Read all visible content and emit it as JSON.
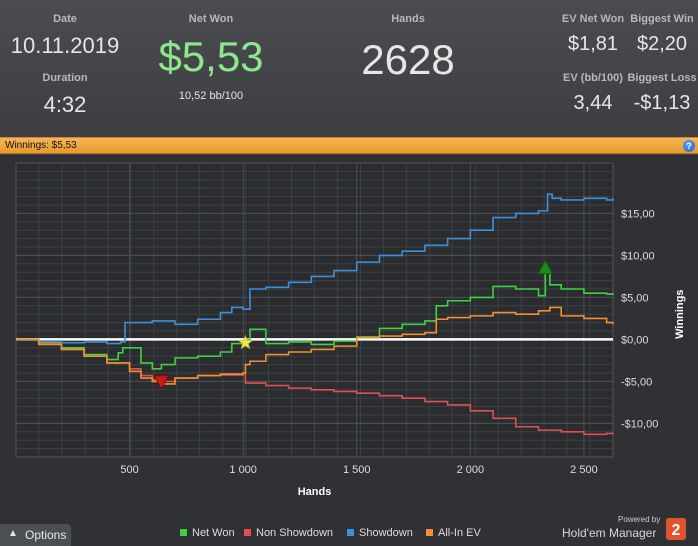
{
  "stats": {
    "date_label": "Date",
    "date_value": "10.11.2019",
    "duration_label": "Duration",
    "duration_value": "4:32",
    "netwon_label": "Net Won",
    "netwon_value": "$5,53",
    "bb100_value": "10,52 bb/100",
    "hands_label": "Hands",
    "hands_value": "2628",
    "ev_net_label": "EV Net Won",
    "ev_net_value": "$1,81",
    "biggest_win_label": "Biggest Win",
    "biggest_win_value": "$2,20",
    "ev_bb_label": "EV (bb/100)",
    "ev_bb_value": "3,44",
    "biggest_loss_label": "Biggest Loss",
    "biggest_loss_value": "-$1,13"
  },
  "winbar": {
    "label": "Winnings: $5,53",
    "help": "?"
  },
  "chart_data": {
    "type": "line",
    "xlabel": "Hands",
    "ylabel": "Winnings",
    "xlim": [
      0,
      2628
    ],
    "ylim": [
      -14,
      21
    ],
    "x_ticks": [
      500,
      1000,
      1500,
      2000,
      2500
    ],
    "x_tick_labels": [
      "500",
      "1 000",
      "1 500",
      "2 000",
      "2 500"
    ],
    "y_ticks": [
      15,
      10,
      5,
      0,
      -5,
      -10
    ],
    "y_tick_labels": [
      "$15,00",
      "$10,00",
      "$5,00",
      "$0,00",
      "-$5,00",
      "-$10,00"
    ],
    "grid": true,
    "series": [
      {
        "name": "Net Won",
        "color": "#3fd23f",
        "x": [
          0,
          100,
          200,
          300,
          400,
          450,
          470,
          550,
          600,
          640,
          700,
          800,
          900,
          950,
          1000,
          1010,
          1030,
          1100,
          1200,
          1300,
          1400,
          1500,
          1600,
          1700,
          1800,
          1850,
          1900,
          2000,
          2100,
          2200,
          2300,
          2330,
          2350,
          2400,
          2500,
          2600,
          2628
        ],
        "y": [
          0,
          -0.4,
          -1,
          -1.8,
          -2.4,
          -1.6,
          -1.0,
          -2.8,
          -3.5,
          -3.0,
          -2.2,
          -2.0,
          -1.5,
          -0.5,
          -0.4,
          0,
          1.2,
          -0.5,
          -0.3,
          -0.6,
          -0.2,
          0.3,
          1.3,
          1.8,
          2.2,
          4.0,
          4.6,
          5.0,
          6.3,
          6.0,
          5.2,
          8.3,
          6.5,
          6.0,
          5.5,
          5.4,
          5.53
        ]
      },
      {
        "name": "Non Showdown",
        "color": "#e05050",
        "x": [
          0,
          100,
          200,
          300,
          400,
          500,
          550,
          600,
          650,
          700,
          800,
          900,
          1000,
          1010,
          1100,
          1200,
          1300,
          1400,
          1500,
          1600,
          1700,
          1800,
          1900,
          2000,
          2100,
          2200,
          2300,
          2400,
          2500,
          2600,
          2628
        ],
        "y": [
          0,
          -0.5,
          -1.2,
          -2.0,
          -2.8,
          -3.5,
          -4.3,
          -4.8,
          -5.0,
          -4.6,
          -4.3,
          -4.1,
          -4.0,
          -5.2,
          -5.5,
          -5.8,
          -6.0,
          -6.2,
          -6.4,
          -6.7,
          -7.0,
          -7.4,
          -7.8,
          -8.5,
          -9.4,
          -10.4,
          -10.8,
          -11.0,
          -11.3,
          -11.2,
          -11.3
        ]
      },
      {
        "name": "Showdown",
        "color": "#3d8fdb",
        "x": [
          0,
          100,
          200,
          300,
          400,
          460,
          480,
          600,
          700,
          800,
          900,
          950,
          1000,
          1030,
          1100,
          1200,
          1300,
          1400,
          1500,
          1600,
          1700,
          1800,
          1900,
          2000,
          2100,
          2200,
          2300,
          2340,
          2360,
          2400,
          2500,
          2600,
          2628
        ],
        "y": [
          0,
          -0.2,
          -0.4,
          -0.3,
          -0.5,
          -0.3,
          2.0,
          2.2,
          1.8,
          2.4,
          3.2,
          3.8,
          3.6,
          6.0,
          6.2,
          6.8,
          7.5,
          8.2,
          9.2,
          10.0,
          10.5,
          11.2,
          12.0,
          13.0,
          14.5,
          15.0,
          15.3,
          17.3,
          16.8,
          16.6,
          16.8,
          16.6,
          16.8
        ]
      },
      {
        "name": "All-In EV",
        "color": "#f0902e",
        "x": [
          0,
          100,
          200,
          300,
          400,
          500,
          550,
          600,
          650,
          700,
          800,
          900,
          1000,
          1010,
          1030,
          1100,
          1200,
          1300,
          1400,
          1500,
          1600,
          1700,
          1800,
          1850,
          1900,
          2000,
          2100,
          2200,
          2300,
          2350,
          2400,
          2500,
          2600,
          2628
        ],
        "y": [
          0,
          -0.6,
          -1.2,
          -2.0,
          -2.8,
          -3.8,
          -4.6,
          -5.0,
          -5.3,
          -4.6,
          -4.3,
          -4.2,
          -4.0,
          -3.0,
          -2.6,
          -1.8,
          -1.5,
          -1.2,
          -0.8,
          0.2,
          0.4,
          0.6,
          0.8,
          2.4,
          2.6,
          2.8,
          3.2,
          3.0,
          3.4,
          3.8,
          2.8,
          2.5,
          2.0,
          1.81
        ]
      }
    ],
    "markers": [
      {
        "name": "biggest-win-marker",
        "x": 2330,
        "y": 8.3,
        "shape": "up-triangle",
        "color": "#1e8a1e"
      },
      {
        "name": "biggest-loss-marker",
        "x": 640,
        "y": -4.8,
        "shape": "down-triangle",
        "color": "#cc1a1a"
      },
      {
        "name": "star-marker",
        "x": 1010,
        "y": -0.4,
        "shape": "star",
        "color": "#f5e84a"
      }
    ]
  },
  "legend": [
    "Net Won",
    "Non Showdown",
    "Showdown",
    "All-In EV"
  ],
  "options_label": "Options",
  "brand": {
    "powered_by": "Powered by",
    "name": "Hold'em Manager",
    "badge_number": "2"
  }
}
